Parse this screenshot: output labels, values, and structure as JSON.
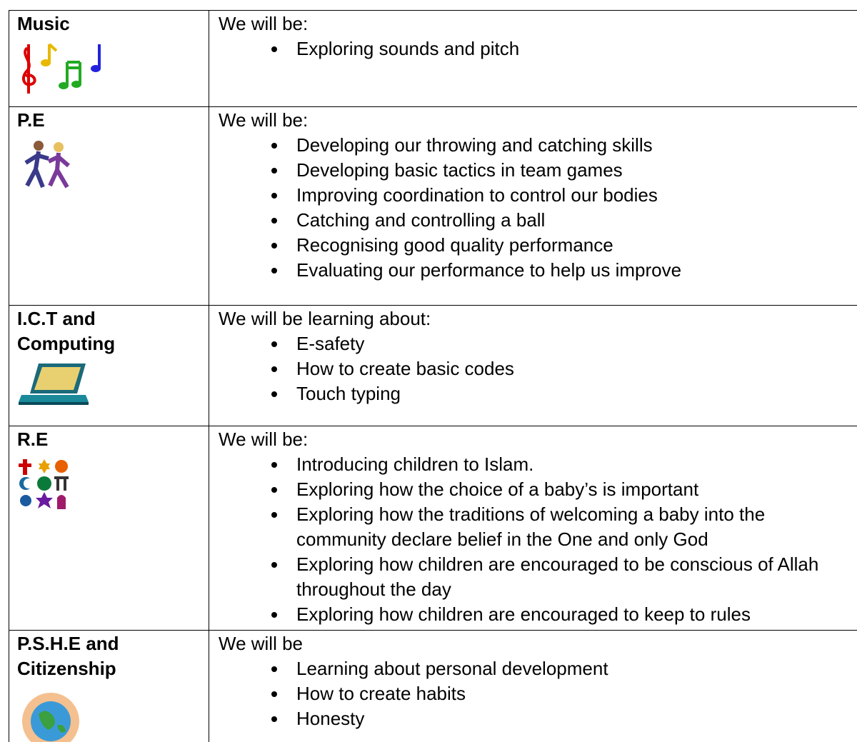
{
  "rows": [
    {
      "subject": "Music",
      "intro": "We will be:",
      "items": [
        "Exploring sounds and pitch"
      ]
    },
    {
      "subject": "P.E",
      "intro": "We will be:",
      "items": [
        "Developing our throwing and catching skills",
        "Developing basic tactics in team games",
        "Improving coordination to control our bodies",
        "Catching and controlling a ball",
        "Recognising good quality performance",
        "Evaluating our performance to help us improve"
      ]
    },
    {
      "subject": "I.C.T and Computing",
      "intro": "We will be learning about:",
      "items": [
        "E-safety",
        "How to create basic codes",
        "Touch typing"
      ]
    },
    {
      "subject": "R.E",
      "intro": "We will be:",
      "items": [
        "Introducing children to Islam.",
        "Exploring how the choice of a baby’s is important",
        "Exploring how the traditions of welcoming a baby into the community declare belief in the One and only God",
        "Exploring how children are encouraged to be conscious of Allah throughout the day",
        "Exploring how children are encouraged to keep to rules"
      ]
    },
    {
      "subject": "P.S.H.E and Citizenship",
      "intro": "We will be",
      "items": [
        "Learning about personal development",
        "How to create habits",
        "Honesty"
      ]
    }
  ]
}
